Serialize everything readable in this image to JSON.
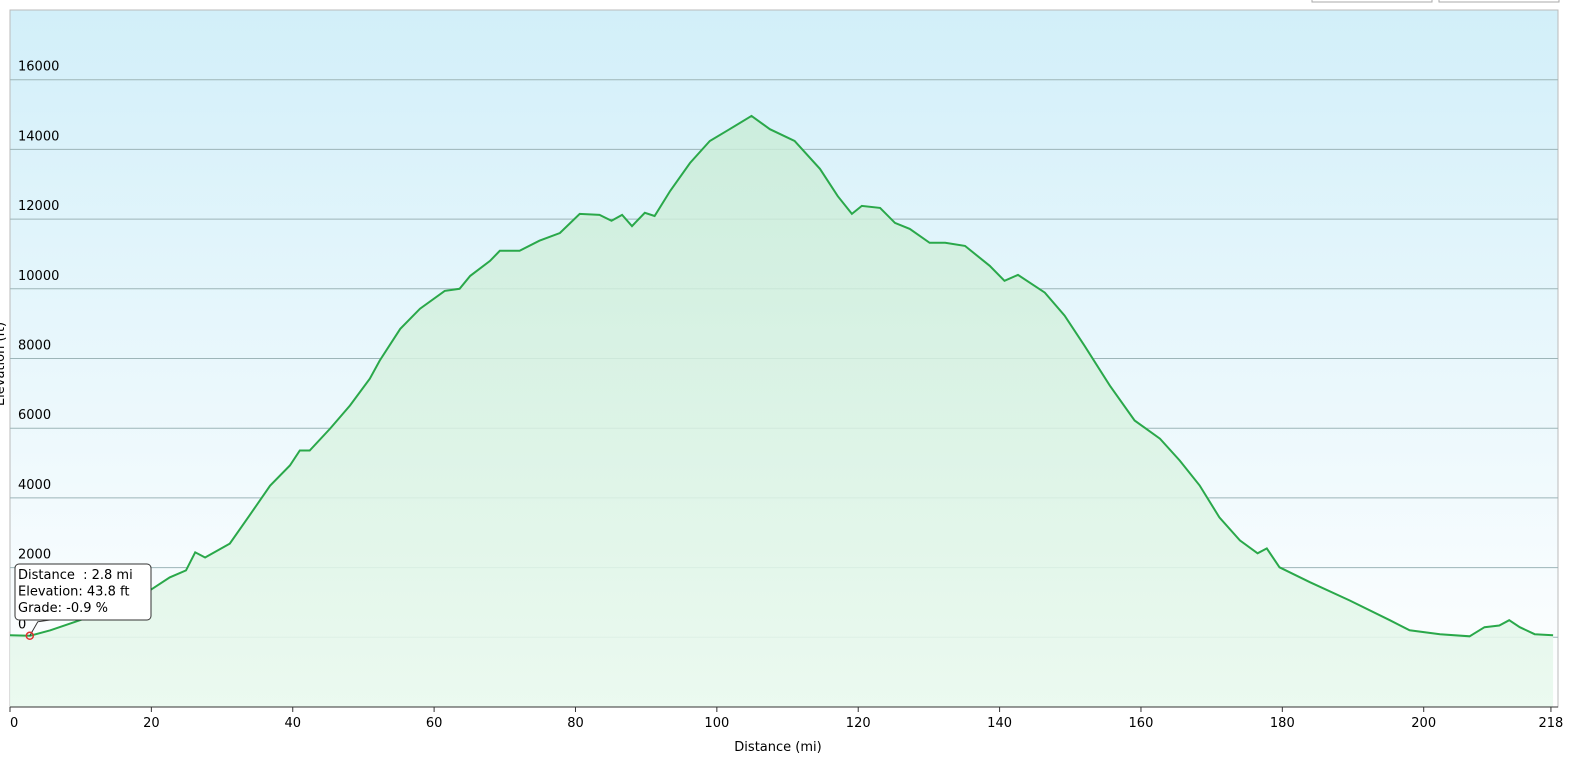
{
  "chart_data": {
    "type": "area-line",
    "x_label": "Distance   (mi)",
    "y_label": "Elevation (ft)",
    "x": [
      0,
      2.8,
      5.7,
      9.9,
      15.6,
      19.8,
      22.6,
      24.9,
      26.2,
      27.6,
      31.1,
      33.9,
      36.8,
      39.6,
      41.0,
      42.4,
      45.3,
      48.1,
      50.9,
      52.3,
      55.2,
      58.0,
      61.5,
      63.6,
      65.1,
      67.9,
      69.3,
      72.1,
      74.9,
      77.8,
      80.6,
      83.4,
      85.1,
      86.6,
      88.0,
      89.8,
      91.2,
      93.4,
      96.2,
      99.0,
      101.8,
      104.9,
      107.5,
      111.0,
      114.6,
      117.1,
      119.1,
      120.5,
      123.1,
      125.2,
      127.3,
      130.1,
      132.3,
      135.1,
      138.6,
      140.7,
      142.6,
      146.4,
      149.2,
      152.0,
      155.6,
      159.1,
      162.7,
      165.5,
      168.3,
      171.1,
      174.0,
      176.5,
      177.8,
      179.6,
      183.9,
      189.5,
      195.2,
      198.0,
      202.3,
      206.5,
      208.6,
      210.7,
      212.1,
      213.6,
      215.7,
      218.3
    ],
    "series": [
      {
        "name": "Elevation",
        "color": "#2aa84a",
        "values": [
          57,
          44,
          200,
          490,
          920,
          1350,
          1720,
          1920,
          2440,
          2290,
          2690,
          3500,
          4350,
          4930,
          5360,
          5360,
          5990,
          6650,
          7420,
          7940,
          8850,
          9430,
          9940,
          10000,
          10370,
          10800,
          11090,
          11090,
          11380,
          11600,
          12150,
          12120,
          11950,
          12120,
          11800,
          12180,
          12090,
          12810,
          13610,
          14240,
          14580,
          14960,
          14580,
          14240,
          13440,
          12660,
          12150,
          12380,
          12320,
          11890,
          11720,
          11320,
          11320,
          11230,
          10660,
          10230,
          10400,
          9890,
          9230,
          8370,
          7220,
          6220,
          5700,
          5070,
          4360,
          3440,
          2780,
          2410,
          2550,
          2010,
          1580,
          1060,
          490,
          200,
          90,
          30,
          290,
          340,
          490,
          290,
          90,
          60
        ]
      }
    ],
    "xlim": [
      0,
      219
    ],
    "xticks": [
      0,
      20,
      40,
      60,
      80,
      100,
      120,
      140,
      160,
      180,
      200,
      218
    ],
    "ylim": [
      -2000,
      18000
    ],
    "yticks": [
      0,
      2000,
      4000,
      6000,
      8000,
      10000,
      12000,
      14000,
      16000
    ],
    "grid": true,
    "marker": {
      "x": 2.8,
      "y": 43.8
    },
    "tooltip": [
      "Distance  : 2.8 mi",
      "Elevation: 43.8 ft",
      "Grade: -0.9 %"
    ]
  }
}
